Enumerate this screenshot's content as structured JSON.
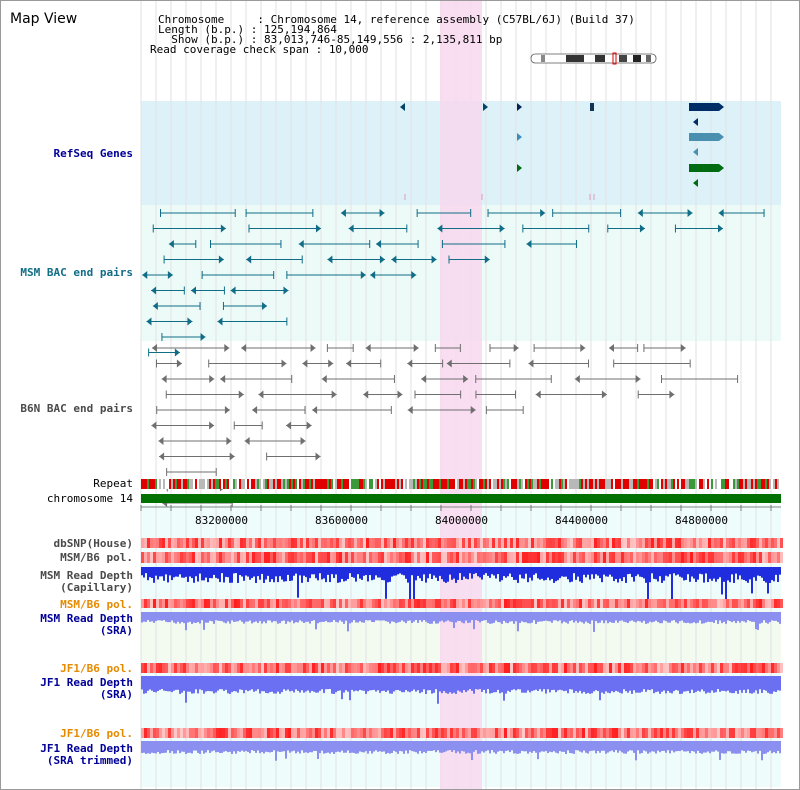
{
  "header": {
    "title": "Map View",
    "chromosome_key": "Chromosome     : ",
    "chromosome_val": "Chromosome 14, reference assembly (C57BL/6J) (Build 37)",
    "length_key": "Length (b.p.) : ",
    "length_val": "125,194,864",
    "show_key": "  Show (b.p.) : ",
    "show_val": "83,013,746-85,149,556 : 2,135,811 bp",
    "coverage_key": "Read coverage check span : ",
    "coverage_val": "10,000"
  },
  "colors": {
    "refseq_bg": "#ddf1f9",
    "msm_bac_bg": "#ecfaf8",
    "b6n_bg": "#ffffff",
    "highlight": "#f8d8ef",
    "msm_color": "#116d86",
    "b6n_color": "#777777",
    "chrom_green": "#007100",
    "label_blue": "#000099",
    "label_gray": "#4a4a4a",
    "label_orange": "#e68a00"
  },
  "tracks": {
    "refseq": "RefSeq Genes",
    "msm_bac": "MSM BAC end pairs",
    "b6n_bac": "B6N BAC end pairs",
    "repeat": "Repeat",
    "chromosome": "chromosome 14",
    "dbsnp": "dbSNP(House)",
    "msm_b6_pol_1": "MSM/B6 pol.",
    "msm_depth_cap_1": "MSM Read Depth",
    "msm_depth_cap_2": "(Capillary)",
    "msm_b6_pol_2": "MSM/B6 pol.",
    "msm_depth_sra_1": "MSM Read Depth",
    "msm_depth_sra_2": "(SRA)",
    "jf1_pol_1": "JF1/B6 pol.",
    "jf1_depth_sra_1": "JF1 Read Depth",
    "jf1_depth_sra_2": "(SRA)",
    "jf1_pol_2": "JF1/B6 pol.",
    "jf1_depth_trim_1": "JF1 Read Depth",
    "jf1_depth_trim_2": "(SRA trimmed)"
  },
  "axis": {
    "ticks": [
      "83200000",
      "83600000",
      "84000000",
      "84400000",
      "84800000"
    ]
  }
}
